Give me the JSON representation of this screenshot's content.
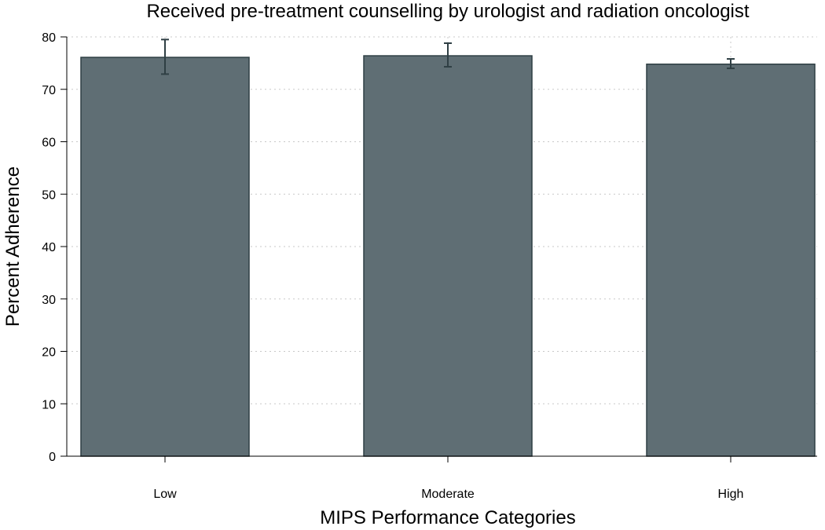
{
  "chart_data": {
    "type": "bar",
    "title": "Received pre-treatment counselling by urologist and radiation oncologist",
    "xlabel": "MIPS Performance Categories",
    "ylabel": "Percent Adherence",
    "categories": [
      "Low",
      "Moderate",
      "High"
    ],
    "series": [
      {
        "values": [
          76.1,
          76.4,
          74.8
        ],
        "error_low": [
          72.9,
          74.3,
          74.0
        ],
        "error_high": [
          79.5,
          78.8,
          75.8
        ]
      }
    ],
    "ylim": [
      0,
      80
    ],
    "yticks": [
      0,
      10,
      20,
      30,
      40,
      50,
      60,
      70,
      80
    ],
    "grid": true,
    "legend": "none",
    "colors": {
      "bar": "#5f6e74",
      "bar_edge": "#2f3f44"
    }
  }
}
